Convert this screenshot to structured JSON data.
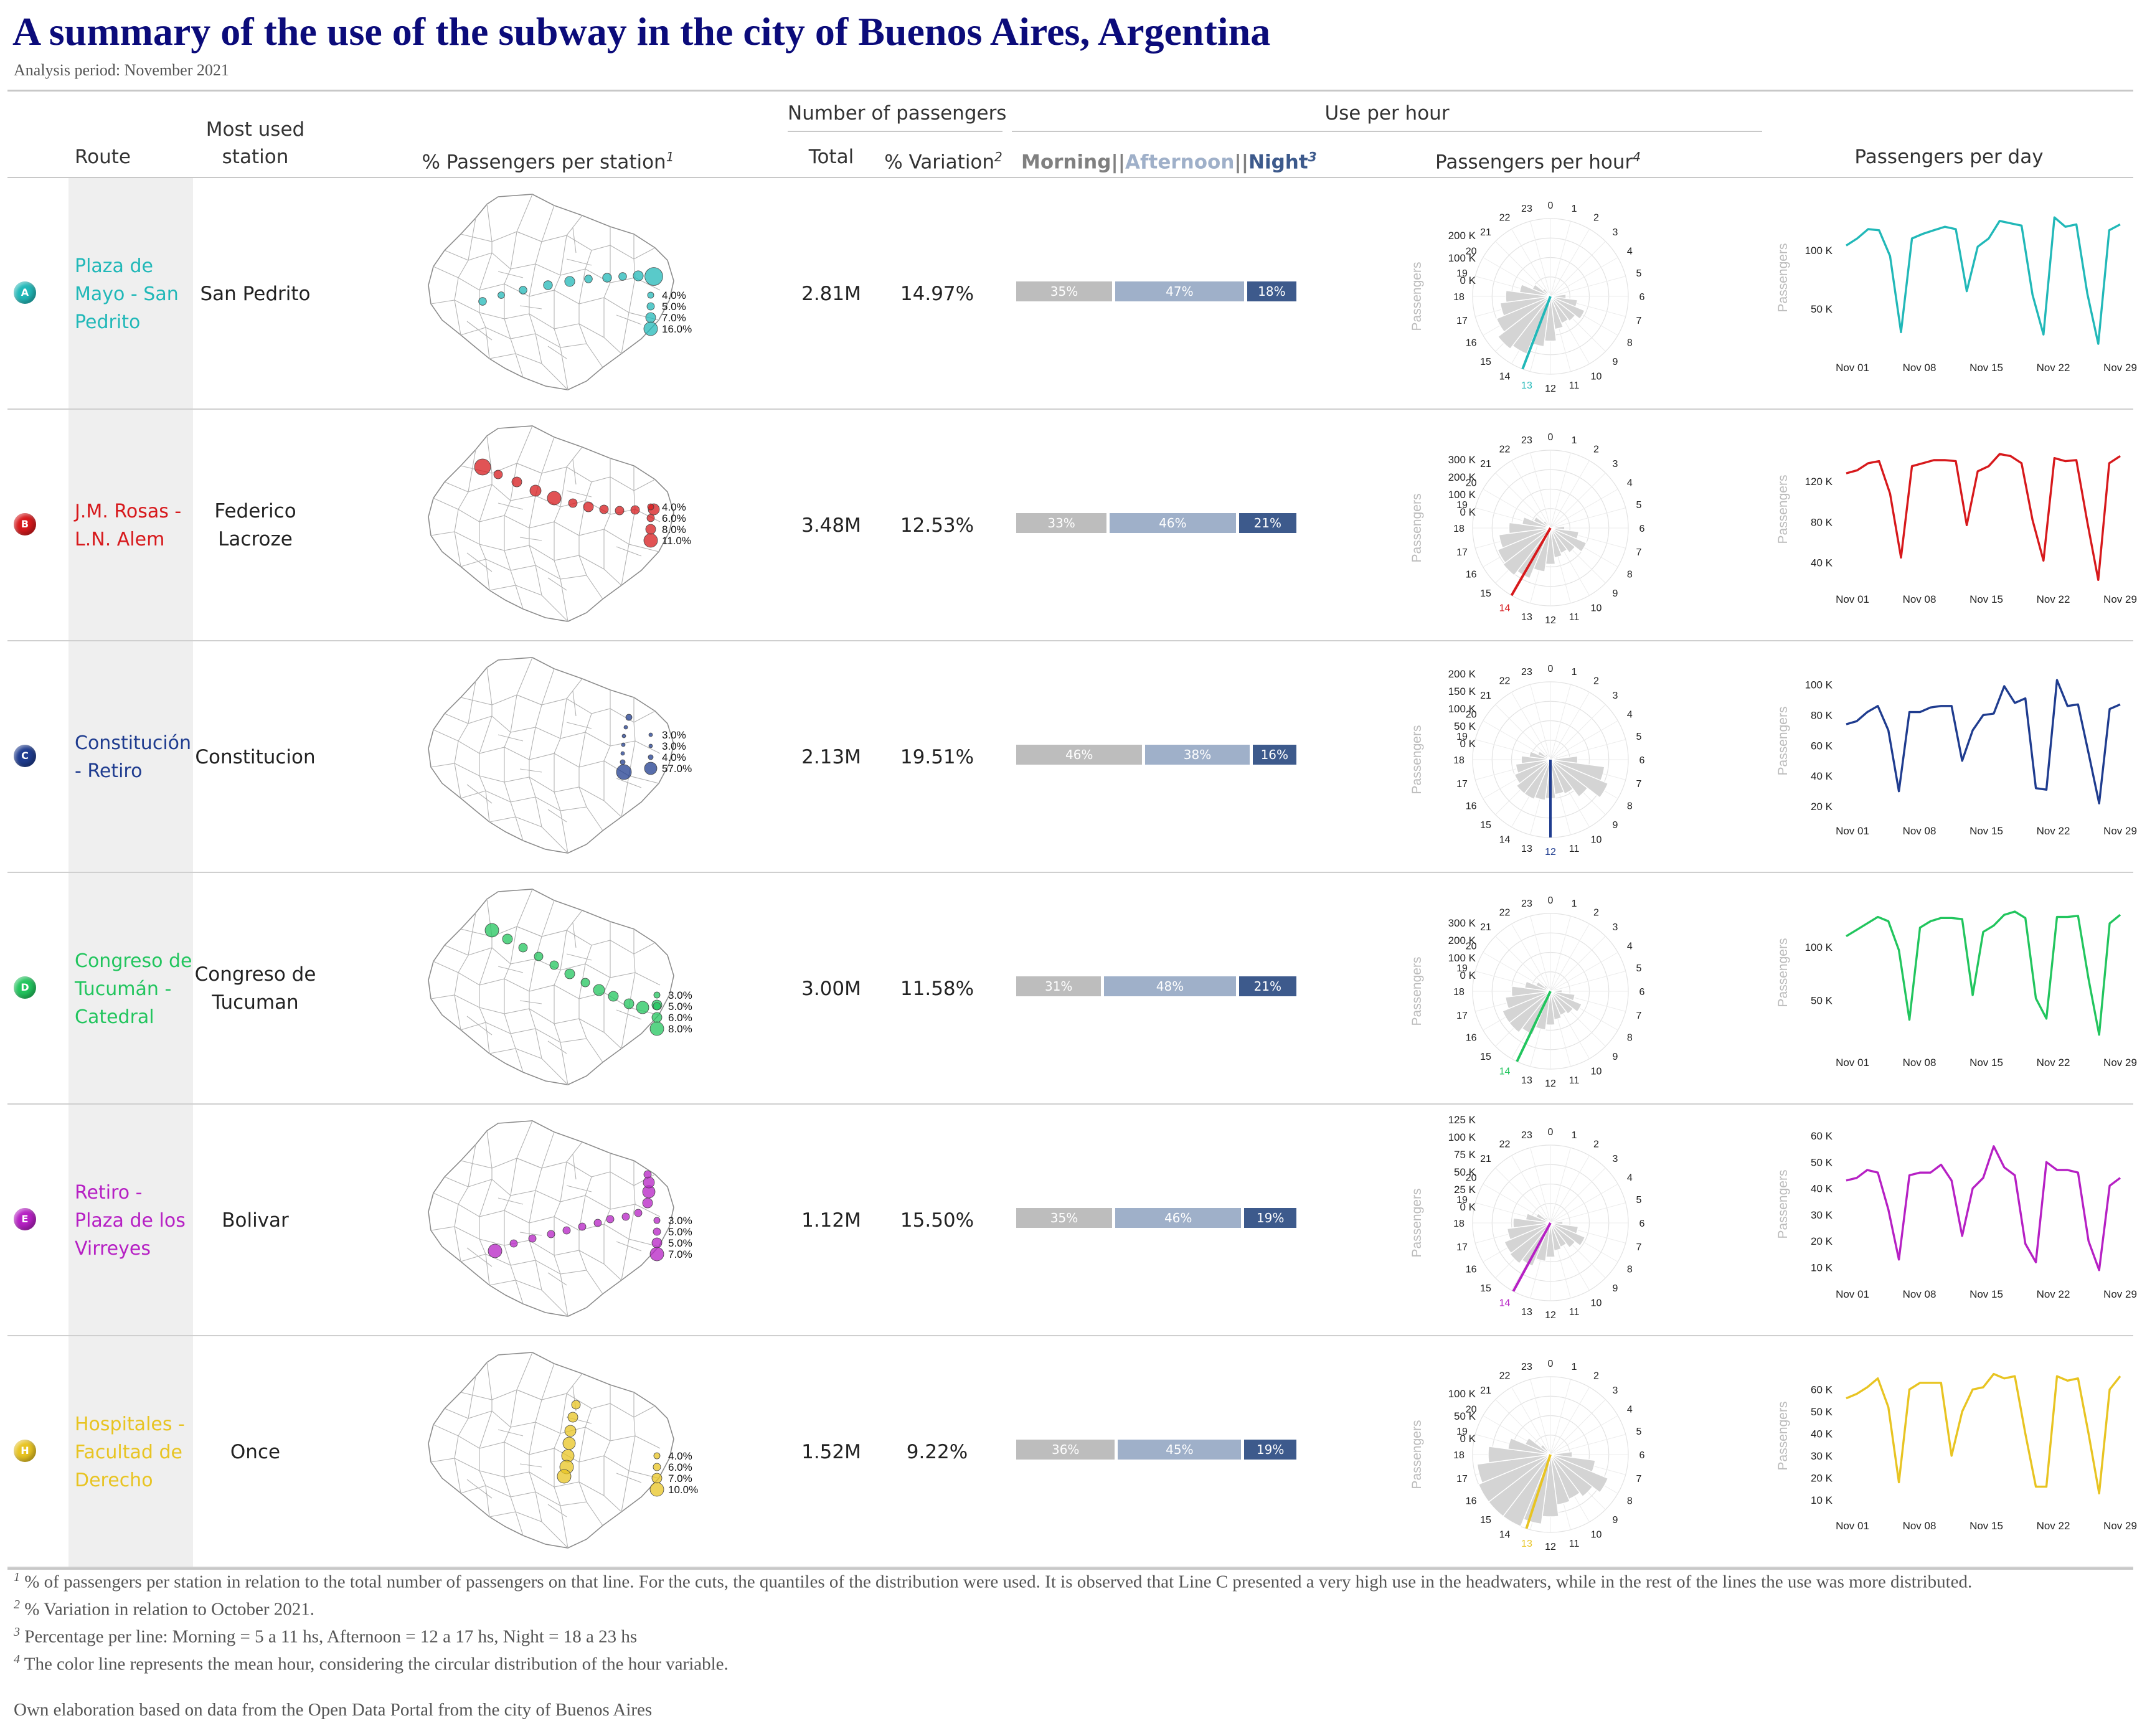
{
  "title": "A summary of the use of the subway in the city of Buenos Aires, Argentina",
  "subtitle": "Analysis period: November 2021",
  "headers": {
    "route": "Route",
    "most_used_1": "Most used",
    "most_used_2": "station",
    "pct_station": "% Passengers per station",
    "pct_station_sup": "1",
    "number_group": "Number of passengers",
    "total": "Total",
    "variation": "% Variation",
    "variation_sup": "2",
    "use_group": "Use per hour",
    "morning": "Morning",
    "sep1": "||",
    "afternoon": "Afternoon",
    "sep2": "||",
    "night": "Night",
    "mn_sup": "3",
    "pph": "Passengers per hour",
    "pph_sup": "4",
    "ppd": "Passengers per day"
  },
  "colors": {
    "morning": "#bdbdbd",
    "afternoon": "#9fb0c9",
    "night": "#3d5a8c",
    "bars": "#d4d4d4"
  },
  "chart_data": {
    "type": "table",
    "day_labels": [
      "Nov 01",
      "Nov 08",
      "Nov 15",
      "Nov 22",
      "Nov 29"
    ],
    "hour_labels": [
      "0",
      "1",
      "2",
      "3",
      "4",
      "5",
      "6",
      "7",
      "8",
      "9",
      "10",
      "11",
      "12",
      "13",
      "14",
      "15",
      "16",
      "17",
      "18",
      "19",
      "20",
      "21",
      "22",
      "23"
    ],
    "polar_axis_title": "Passengers",
    "line_axis_title": "Passengers",
    "lines": [
      {
        "badge": "A",
        "color": "#21b8b8",
        "route": "Plaza de Mayo - San Pedrito",
        "station": "San Pedrito",
        "total": "2.81M",
        "variation": "14.97%",
        "shares": [
          35,
          47,
          18
        ],
        "share_labels": [
          "35%",
          "47%",
          "18%"
        ],
        "legend": [
          "4.0%",
          "5.0%",
          "7.0%",
          "16.0%"
        ],
        "polar_ticks": [
          "200 K",
          "100 K",
          "0 K"
        ],
        "polar_max": 200000,
        "hourly": [
          0,
          0,
          0,
          0,
          0,
          12000,
          40000,
          70000,
          95000,
          80000,
          75000,
          85000,
          115000,
          130000,
          160000,
          170000,
          150000,
          130000,
          115000,
          80000,
          50000,
          25000,
          10000,
          2000
        ],
        "mean_hour": 13.4,
        "line_ticks": [
          "100 K",
          "50 K"
        ],
        "line_tick_values": [
          100000,
          50000
        ],
        "line_range": [
          18000,
          135000
        ],
        "daily": [
          104000,
          110000,
          118000,
          117000,
          95000,
          30000,
          110000,
          114000,
          117000,
          120000,
          118000,
          65000,
          103000,
          110000,
          125000,
          123000,
          121000,
          62000,
          28000,
          128000,
          120000,
          122000,
          63000,
          20000,
          117000,
          122000
        ]
      },
      {
        "badge": "B",
        "color": "#d7191c",
        "route": "J.M. Rosas - L.N. Alem",
        "station": "Federico Lacroze",
        "total": "3.48M",
        "variation": "12.53%",
        "shares": [
          33,
          46,
          21
        ],
        "share_labels": [
          "33%",
          "46%",
          "21%"
        ],
        "legend": [
          "4.0%",
          "6.0%",
          "8.0%",
          "11.0%"
        ],
        "polar_ticks": [
          "300 K",
          "200 K",
          "100 K",
          "0 K"
        ],
        "polar_max": 300000,
        "hourly": [
          0,
          0,
          0,
          0,
          0,
          15000,
          55000,
          110000,
          150000,
          120000,
          105000,
          115000,
          140000,
          170000,
          210000,
          230000,
          220000,
          200000,
          160000,
          110000,
          70000,
          35000,
          12000,
          3000
        ],
        "mean_hour": 14.0,
        "line_ticks": [
          "120 K",
          "80 K",
          "40 K"
        ],
        "line_tick_values": [
          120000,
          80000,
          40000
        ],
        "line_range": [
          25000,
          160000
        ],
        "daily": [
          128000,
          131000,
          138000,
          140000,
          108000,
          45000,
          135000,
          138000,
          141000,
          141000,
          140000,
          77000,
          130000,
          135000,
          147000,
          145000,
          138000,
          82000,
          42000,
          143000,
          140000,
          141000,
          80000,
          23000,
          138000,
          145000
        ]
      },
      {
        "badge": "C",
        "color": "#1f3c8f",
        "route": "Constitución - Retiro",
        "station": "Constitucion",
        "total": "2.13M",
        "variation": "19.51%",
        "shares": [
          46,
          38,
          16
        ],
        "share_labels": [
          "46%",
          "38%",
          "16%"
        ],
        "legend": [
          "3.0%",
          "3.0%",
          "4.0%",
          "57.0%"
        ],
        "polar_ticks": [
          "200 K",
          "150 K",
          "100 K",
          "50 K",
          "0 K"
        ],
        "polar_max": 200000,
        "hourly": [
          0,
          0,
          0,
          0,
          0,
          20000,
          70000,
          140000,
          160000,
          120000,
          95000,
          90000,
          100000,
          105000,
          110000,
          110000,
          100000,
          90000,
          75000,
          55000,
          35000,
          18000,
          6000,
          1500
        ],
        "mean_hour": 12.0,
        "line_ticks": [
          "100 K",
          "80 K",
          "60 K",
          "40 K",
          "20 K"
        ],
        "line_tick_values": [
          100000,
          80000,
          60000,
          40000,
          20000
        ],
        "line_range": [
          18000,
          108000
        ],
        "daily": [
          74000,
          76000,
          82000,
          86000,
          70000,
          30000,
          82000,
          82000,
          85000,
          86000,
          86000,
          50000,
          70000,
          80000,
          81000,
          99000,
          88000,
          91000,
          32000,
          31000,
          103000,
          86000,
          87000,
          55000,
          22000,
          84000,
          87000
        ]
      },
      {
        "badge": "D",
        "color": "#22c55e",
        "route": "Congreso de Tucumán - Catedral",
        "station": "Congreso de Tucuman",
        "total": "3.00M",
        "variation": "11.58%",
        "shares": [
          31,
          48,
          21
        ],
        "share_labels": [
          "31%",
          "48%",
          "21%"
        ],
        "legend": [
          "3.0%",
          "5.0%",
          "6.0%",
          "8.0%"
        ],
        "polar_ticks": [
          "300 K",
          "200 K",
          "100 K",
          "0 K"
        ],
        "polar_max": 300000,
        "hourly": [
          0,
          0,
          0,
          0,
          0,
          12000,
          45000,
          95000,
          130000,
          110000,
          100000,
          110000,
          130000,
          150000,
          180000,
          200000,
          200000,
          175000,
          150000,
          100000,
          60000,
          30000,
          10000,
          2000
        ],
        "mean_hour": 13.7,
        "line_ticks": [
          "100 K",
          "50 K"
        ],
        "line_tick_values": [
          100000,
          50000
        ],
        "line_range": [
          12000,
          140000
        ],
        "daily": [
          110000,
          116000,
          122000,
          128000,
          124000,
          97000,
          32000,
          118000,
          124000,
          127000,
          127000,
          126000,
          55000,
          114000,
          120000,
          130000,
          133000,
          127000,
          52000,
          33000,
          128000,
          128000,
          129000,
          70000,
          18000,
          122000,
          130000
        ]
      },
      {
        "badge": "E",
        "color": "#b620c4",
        "route": "Retiro - Plaza de los Virreyes",
        "station": "Bolivar",
        "total": "1.12M",
        "variation": "15.50%",
        "shares": [
          35,
          46,
          19
        ],
        "share_labels": [
          "35%",
          "46%",
          "19%"
        ],
        "legend": [
          "3.0%",
          "5.0%",
          "5.0%",
          "7.0%"
        ],
        "polar_ticks": [
          "125 K",
          "100 K",
          "75 K",
          "50 K",
          "25 K",
          "0 K"
        ],
        "polar_max": 125000,
        "hourly": [
          0,
          0,
          0,
          0,
          0,
          5000,
          20000,
          45000,
          60000,
          50000,
          42000,
          45000,
          55000,
          62000,
          75000,
          82000,
          80000,
          70000,
          60000,
          40000,
          25000,
          12000,
          4000,
          1000
        ],
        "mean_hour": 13.9,
        "line_ticks": [
          "60 K",
          "50 K",
          "40 K",
          "30 K",
          "20 K",
          "10 K"
        ],
        "line_tick_values": [
          60000,
          50000,
          40000,
          30000,
          20000,
          10000
        ],
        "line_range": [
          8000,
          60000
        ],
        "daily": [
          43000,
          44000,
          47000,
          46000,
          32000,
          13000,
          45000,
          46000,
          46000,
          49000,
          43000,
          22000,
          40000,
          44000,
          56000,
          48000,
          45000,
          19000,
          12000,
          50000,
          47000,
          47000,
          46000,
          20000,
          9000,
          41000,
          44000
        ]
      },
      {
        "badge": "H",
        "color": "#e8c422",
        "route": "Hospitales - Facultad de Derecho",
        "station": "Once",
        "total": "1.52M",
        "variation": "9.22%",
        "shares": [
          36,
          45,
          19
        ],
        "share_labels": [
          "36%",
          "45%",
          "19%"
        ],
        "legend": [
          "4.0%",
          "6.0%",
          "7.0%",
          "10.0%"
        ],
        "polar_ticks": [
          "100 K",
          "50 K",
          "0 K"
        ],
        "polar_max": 100000,
        "hourly": [
          0,
          0,
          0,
          0,
          0,
          8000,
          28000,
          58000,
          80000,
          68000,
          62000,
          65000,
          80000,
          90000,
          110000,
          120000,
          112000,
          95000,
          80000,
          55000,
          35000,
          16000,
          5000,
          1000
        ],
        "mean_hour": 13.2,
        "line_ticks": [
          "60 K",
          "50 K",
          "40 K",
          "30 K",
          "20 K",
          "10 K"
        ],
        "line_tick_values": [
          60000,
          50000,
          40000,
          30000,
          20000,
          10000
        ],
        "line_range": [
          8000,
          70000
        ],
        "daily": [
          56000,
          58000,
          61000,
          65000,
          52000,
          18000,
          60000,
          63000,
          63000,
          63000,
          30000,
          50000,
          60000,
          61000,
          67000,
          65000,
          66000,
          40000,
          16000,
          16000,
          66000,
          64000,
          65000,
          40000,
          13000,
          60000,
          66000
        ]
      }
    ]
  },
  "footnotes": {
    "f1_sup": "1",
    "f1": " % of passengers per station in relation to the total number of passengers on that line. For the cuts, the quantiles of the distribution were used. It is observed that Line C presented a very high use in the headwaters, while in the rest of the lines the use was more distributed.",
    "f2_sup": "2",
    "f2": " % Variation in relation to October 2021.",
    "f3_sup": "3",
    "f3": " Percentage per line: Morning = 5 a 11 hs, Afternoon = 12 a 17 hs, Night = 18 a 23 hs",
    "f4_sup": "4",
    "f4": " The color line represents the mean hour, considering the circular distribution of the hour variable.",
    "source": "Own elaboration based on data from the Open Data Portal from the city of Buenos Aires"
  }
}
